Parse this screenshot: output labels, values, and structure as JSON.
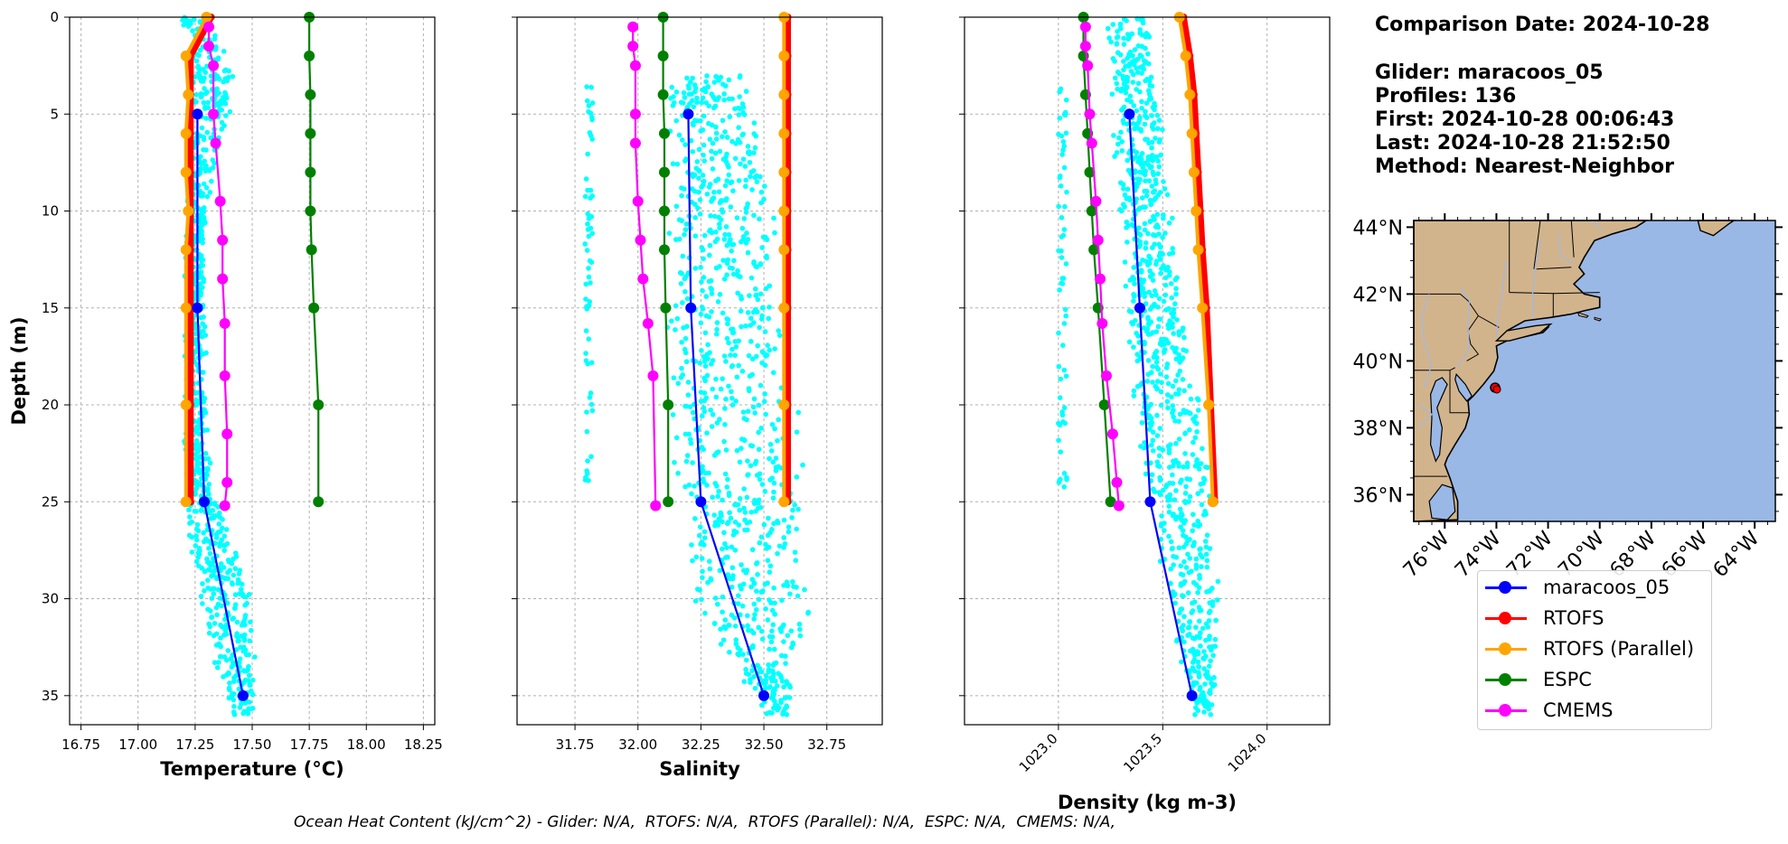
{
  "info": {
    "comparison_date": "Comparison Date: 2024-10-28",
    "glider": "Glider: maracoos_05",
    "profiles": "Profiles: 136",
    "first": "First: 2024-10-28 00:06:43",
    "last": "Last: 2024-10-28 21:52:50",
    "method": "Method: Nearest-Neighbor"
  },
  "footer": "Ocean Heat Content (kJ/cm^2) - Glider: N/A,  RTOFS: N/A,  RTOFS (Parallel): N/A,  ESPC: N/A,  CMEMS: N/A,",
  "legend": [
    {
      "label": "maracoos_05",
      "color": "#0000ff"
    },
    {
      "label": "RTOFS",
      "color": "#ff0000"
    },
    {
      "label": "RTOFS (Parallel)",
      "color": "#ffa500"
    },
    {
      "label": "ESPC",
      "color": "#008000"
    },
    {
      "label": "CMEMS",
      "color": "#ff00ff"
    }
  ],
  "colors": {
    "glider_scatter": "#00ffff",
    "land": "#d2b48c",
    "ocean": "#9ab8e6",
    "rivers": "#a4b8e0"
  },
  "chart_data": [
    {
      "type": "line",
      "xlabel": "Temperature (°C)",
      "ylabel": "Depth (m)",
      "xlim": [
        16.7,
        18.3
      ],
      "ylim": [
        36.5,
        0
      ],
      "xticks": [
        "16.75",
        "17.00",
        "17.25",
        "17.50",
        "17.75",
        "18.00",
        "18.25"
      ],
      "xtick_values": [
        16.75,
        17.0,
        17.25,
        17.5,
        17.75,
        18.0,
        18.25
      ],
      "yticks": [
        "0",
        "5",
        "10",
        "15",
        "20",
        "25",
        "30",
        "35"
      ],
      "grid": true,
      "scatter_range": {
        "min": [
          17.18,
          17.22,
          17.2,
          17.2,
          17.2,
          17.2,
          17.25,
          17.4
        ],
        "max": [
          17.3,
          17.45,
          17.3,
          17.3,
          17.3,
          17.35,
          17.52,
          17.52
        ],
        "depth": [
          0,
          3,
          10,
          15,
          20,
          25,
          30,
          36
        ]
      },
      "series": [
        {
          "name": "maracoos_05",
          "x": [
            17.26,
            17.26,
            17.29,
            17.46
          ],
          "y": [
            5,
            15,
            25,
            35
          ]
        },
        {
          "name": "RTOFS",
          "x": [
            17.32,
            17.23,
            17.23,
            17.23,
            17.23,
            17.23,
            17.23,
            17.23,
            17.23,
            17.23,
            17.23
          ],
          "y": [
            0,
            2,
            4,
            6,
            8,
            10,
            12,
            15,
            20,
            25,
            25
          ]
        },
        {
          "name": "RTOFS (Parallel)",
          "x": [
            17.3,
            17.21,
            17.22,
            17.21,
            17.21,
            17.22,
            17.21,
            17.21,
            17.21,
            17.21
          ],
          "y": [
            0,
            2,
            4,
            6,
            8,
            10,
            12,
            15,
            20,
            25
          ]
        },
        {
          "name": "ESPC",
          "x": [
            17.75,
            17.75,
            17.755,
            17.755,
            17.755,
            17.755,
            17.76,
            17.77,
            17.79,
            17.79
          ],
          "y": [
            0,
            2,
            4,
            6,
            8,
            10,
            12,
            15,
            20,
            25
          ]
        },
        {
          "name": "CMEMS",
          "x": [
            17.31,
            17.31,
            17.33,
            17.33,
            17.34,
            17.36,
            17.37,
            17.37,
            17.38,
            17.38,
            17.39,
            17.39,
            17.38
          ],
          "y": [
            0.5,
            1.5,
            2.5,
            5,
            6.5,
            9.5,
            11.5,
            13.5,
            15.8,
            18.5,
            21.5,
            24,
            25.2
          ]
        }
      ]
    },
    {
      "type": "line",
      "xlabel": "Salinity",
      "xlim": [
        31.52,
        32.97
      ],
      "ylim": [
        36.5,
        0
      ],
      "xticks": [
        "31.75",
        "32.00",
        "32.25",
        "32.50",
        "32.75"
      ],
      "xtick_values": [
        31.75,
        32.0,
        32.25,
        32.5,
        32.75
      ],
      "grid": true,
      "scatter_range": {
        "min": [
          32.1,
          32.1,
          32.1,
          32.1,
          32.1,
          32.15,
          32.2,
          32.5
        ],
        "max": [
          32.45,
          32.5,
          32.55,
          32.6,
          32.65,
          32.68,
          32.72,
          32.6
        ],
        "depth": [
          3,
          5,
          10,
          15,
          20,
          25,
          30,
          36
        ]
      },
      "series": [
        {
          "name": "maracoos_05",
          "x": [
            32.2,
            32.21,
            32.25,
            32.5
          ],
          "y": [
            5,
            15,
            25,
            35
          ]
        },
        {
          "name": "RTOFS",
          "x": [
            32.595,
            32.595,
            32.595,
            32.595,
            32.595,
            32.595,
            32.595,
            32.595,
            32.595,
            32.595
          ],
          "y": [
            0,
            2,
            4,
            6,
            8,
            10,
            12,
            15,
            20,
            25
          ]
        },
        {
          "name": "RTOFS (Parallel)",
          "x": [
            32.58,
            32.58,
            32.58,
            32.58,
            32.58,
            32.58,
            32.58,
            32.58,
            32.58,
            32.58
          ],
          "y": [
            0,
            2,
            4,
            6,
            8,
            10,
            12,
            15,
            20,
            25
          ]
        },
        {
          "name": "ESPC",
          "x": [
            32.1,
            32.1,
            32.1,
            32.105,
            32.105,
            32.105,
            32.105,
            32.11,
            32.12,
            32.12
          ],
          "y": [
            0,
            2,
            4,
            6,
            8,
            10,
            12,
            15,
            20,
            25
          ]
        },
        {
          "name": "CMEMS",
          "x": [
            31.98,
            31.98,
            31.99,
            31.99,
            31.99,
            32.0,
            32.01,
            32.02,
            32.04,
            32.06,
            32.07
          ],
          "y": [
            0.5,
            1.5,
            2.5,
            5,
            6.5,
            9.5,
            11.5,
            13.5,
            15.8,
            18.5,
            25.2
          ]
        }
      ]
    },
    {
      "type": "line",
      "xlabel": "Density (kg m-3)",
      "xlim": [
        1022.55,
        1024.3
      ],
      "ylim": [
        36.5,
        0
      ],
      "xticks": [
        "1023.0",
        "1023.5",
        "1024.0"
      ],
      "xtick_values": [
        1023.0,
        1023.5,
        1024.0
      ],
      "grid": true,
      "scatter_range": {
        "min": [
          1023.22,
          1023.25,
          1023.28,
          1023.32,
          1023.35,
          1023.42,
          1023.5,
          1023.65
        ],
        "max": [
          1023.45,
          1023.5,
          1023.55,
          1023.6,
          1023.7,
          1023.75,
          1023.78,
          1023.75
        ],
        "depth": [
          0,
          5,
          10,
          15,
          20,
          25,
          30,
          36
        ]
      },
      "series": [
        {
          "name": "maracoos_05",
          "x": [
            1023.34,
            1023.39,
            1023.44,
            1023.64
          ],
          "y": [
            5,
            15,
            25,
            35
          ]
        },
        {
          "name": "RTOFS",
          "x": [
            1023.6,
            1023.63,
            1023.65,
            1023.66,
            1023.67,
            1023.68,
            1023.69,
            1023.71,
            1023.73,
            1023.75
          ],
          "y": [
            0,
            2,
            4,
            6,
            8,
            10,
            12,
            15,
            20,
            25
          ]
        },
        {
          "name": "RTOFS (Parallel)",
          "x": [
            1023.58,
            1023.61,
            1023.63,
            1023.64,
            1023.65,
            1023.66,
            1023.67,
            1023.69,
            1023.72,
            1023.74
          ],
          "y": [
            0,
            2,
            4,
            6,
            8,
            10,
            12,
            15,
            20,
            25
          ]
        },
        {
          "name": "ESPC",
          "x": [
            1023.12,
            1023.12,
            1023.13,
            1023.14,
            1023.15,
            1023.16,
            1023.17,
            1023.19,
            1023.22,
            1023.25
          ],
          "y": [
            0,
            2,
            4,
            6,
            8,
            10,
            12,
            15,
            20,
            25
          ]
        },
        {
          "name": "CMEMS",
          "x": [
            1023.13,
            1023.13,
            1023.14,
            1023.15,
            1023.16,
            1023.18,
            1023.19,
            1023.2,
            1023.21,
            1023.23,
            1023.26,
            1023.28,
            1023.29
          ],
          "y": [
            0.5,
            1.5,
            2.5,
            5,
            6.5,
            9.5,
            11.5,
            13.5,
            15.8,
            18.5,
            21.5,
            24,
            25.2
          ]
        }
      ]
    }
  ],
  "map": {
    "type": "map",
    "lon_range": [
      -77.2,
      -63.2
    ],
    "lat_range": [
      35.2,
      44.2
    ],
    "yticks": [
      "44°N",
      "42°N",
      "40°N",
      "38°N",
      "36°N"
    ],
    "ytick_values": [
      44,
      42,
      40,
      38,
      36
    ],
    "xticks": [
      "76°W",
      "74°W",
      "72°W",
      "70°W",
      "68°W",
      "66°W",
      "64°W"
    ],
    "xtick_values": [
      -76,
      -74,
      -72,
      -70,
      -68,
      -66,
      -64
    ],
    "glider_lon": -74.05,
    "glider_lat": 39.2
  }
}
